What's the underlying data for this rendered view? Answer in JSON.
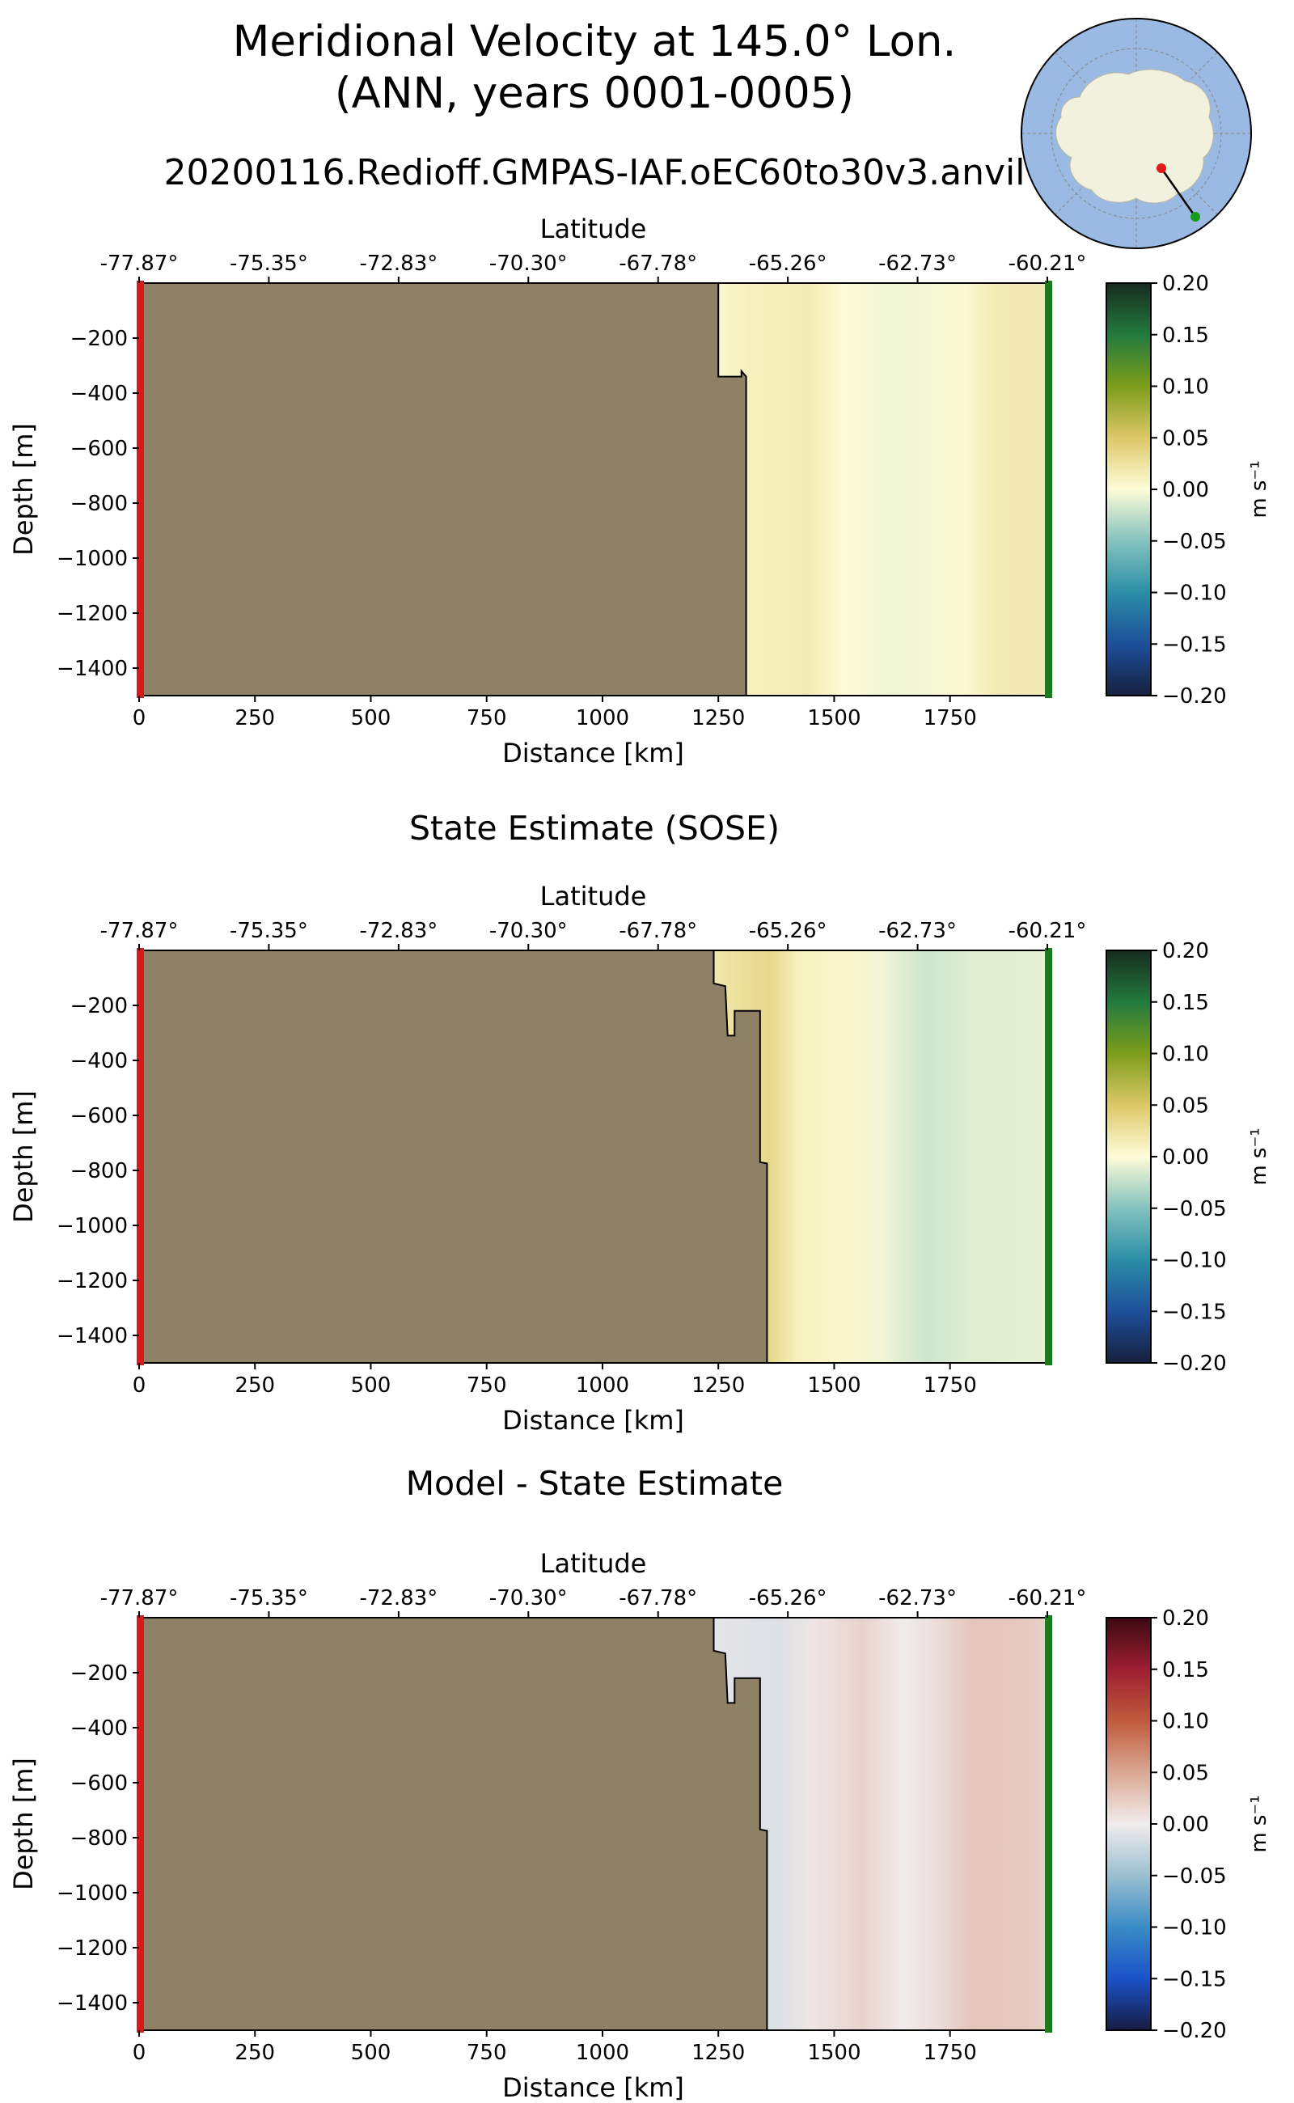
{
  "figure": {
    "title_line1": "Meridional Velocity at 145.0° Lon.",
    "title_line2": "(ANN, years 0001-0005)",
    "run_title": "20200116.Redioff.GMPAS-IAF.oEC60to30v3.anvil"
  },
  "colors": {
    "land": "#8f8165",
    "start_marker": "#d61a1a",
    "end_marker": "#1e7a1e",
    "ocean_map": "#9bbae3",
    "ice_map": "#f2f1dd"
  },
  "chart_data": [
    {
      "type": "heatmap",
      "title": "",
      "xlabel": "Distance [km]",
      "ylabel": "Depth [m]",
      "top_axis_label": "Latitude",
      "xlim": [
        0,
        1960
      ],
      "ylim": [
        -1500,
        0
      ],
      "xticks": [
        0,
        250,
        500,
        750,
        1000,
        1250,
        1500,
        1750
      ],
      "yticks": [
        -200,
        -400,
        -600,
        -800,
        -1000,
        -1200,
        -1400
      ],
      "top_ticks": [
        "-77.87°",
        "-75.35°",
        "-72.83°",
        "-70.30°",
        "-67.78°",
        "-65.26°",
        "-62.73°",
        "-60.21°"
      ],
      "colorbar": {
        "label": "m s⁻¹",
        "ticks": [
          "0.20",
          "0.15",
          "0.10",
          "0.05",
          "0.00",
          "−0.05",
          "−0.10",
          "−0.15",
          "−0.20"
        ],
        "range": [
          -0.2,
          0.2
        ],
        "cmap": "delta"
      },
      "land_boundary": [
        [
          1250,
          0
        ],
        [
          1250,
          -340
        ],
        [
          1300,
          -340
        ],
        [
          1300,
          -320
        ],
        [
          1310,
          -340
        ],
        [
          1310,
          -1500
        ]
      ],
      "field": [
        {
          "x": 1250,
          "v": 0.005
        },
        {
          "x": 1320,
          "v": 0.012
        },
        {
          "x": 1450,
          "v": 0.015
        },
        {
          "x": 1520,
          "v": 0.0
        },
        {
          "x": 1620,
          "v": -0.006
        },
        {
          "x": 1700,
          "v": -0.004
        },
        {
          "x": 1780,
          "v": 0.003
        },
        {
          "x": 1850,
          "v": 0.016
        },
        {
          "x": 1960,
          "v": 0.017
        }
      ]
    },
    {
      "type": "heatmap",
      "title": "State Estimate (SOSE)",
      "xlabel": "Distance [km]",
      "ylabel": "Depth [m]",
      "top_axis_label": "Latitude",
      "xlim": [
        0,
        1960
      ],
      "ylim": [
        -1500,
        0
      ],
      "xticks": [
        0,
        250,
        500,
        750,
        1000,
        1250,
        1500,
        1750
      ],
      "yticks": [
        -200,
        -400,
        -600,
        -800,
        -1000,
        -1200,
        -1400
      ],
      "top_ticks": [
        "-77.87°",
        "-75.35°",
        "-72.83°",
        "-70.30°",
        "-67.78°",
        "-65.26°",
        "-62.73°",
        "-60.21°"
      ],
      "colorbar": {
        "label": "m s⁻¹",
        "ticks": [
          "0.20",
          "0.15",
          "0.10",
          "0.05",
          "0.00",
          "−0.05",
          "−0.10",
          "−0.15",
          "−0.20"
        ],
        "range": [
          -0.2,
          0.2
        ],
        "cmap": "delta"
      },
      "land_boundary": [
        [
          1240,
          0
        ],
        [
          1240,
          -120
        ],
        [
          1265,
          -130
        ],
        [
          1270,
          -310
        ],
        [
          1285,
          -310
        ],
        [
          1285,
          -220
        ],
        [
          1340,
          -220
        ],
        [
          1340,
          -770
        ],
        [
          1355,
          -775
        ],
        [
          1355,
          -1500
        ]
      ],
      "field": [
        {
          "x": 1240,
          "v": 0.02
        },
        {
          "x": 1320,
          "v": 0.03
        },
        {
          "x": 1360,
          "v": 0.035
        },
        {
          "x": 1420,
          "v": 0.012
        },
        {
          "x": 1500,
          "v": 0.006
        },
        {
          "x": 1600,
          "v": -0.005
        },
        {
          "x": 1700,
          "v": -0.02
        },
        {
          "x": 1800,
          "v": -0.012
        },
        {
          "x": 1960,
          "v": -0.01
        }
      ]
    },
    {
      "type": "heatmap",
      "title": "Model - State Estimate",
      "xlabel": "Distance [km]",
      "ylabel": "Depth [m]",
      "top_axis_label": "Latitude",
      "xlim": [
        0,
        1960
      ],
      "ylim": [
        -1500,
        0
      ],
      "xticks": [
        0,
        250,
        500,
        750,
        1000,
        1250,
        1500,
        1750
      ],
      "yticks": [
        -200,
        -400,
        -600,
        -800,
        -1000,
        -1200,
        -1400
      ],
      "top_ticks": [
        "-77.87°",
        "-75.35°",
        "-72.83°",
        "-70.30°",
        "-67.78°",
        "-65.26°",
        "-62.73°",
        "-60.21°"
      ],
      "colorbar": {
        "label": "m s⁻¹",
        "ticks": [
          "0.20",
          "0.15",
          "0.10",
          "0.05",
          "0.00",
          "−0.05",
          "−0.10",
          "−0.15",
          "−0.20"
        ],
        "range": [
          -0.2,
          0.2
        ],
        "cmap": "balance"
      },
      "land_boundary": [
        [
          1240,
          0
        ],
        [
          1240,
          -120
        ],
        [
          1265,
          -130
        ],
        [
          1270,
          -310
        ],
        [
          1285,
          -310
        ],
        [
          1285,
          -220
        ],
        [
          1340,
          -220
        ],
        [
          1340,
          -770
        ],
        [
          1355,
          -775
        ],
        [
          1355,
          -1500
        ]
      ],
      "field": [
        {
          "x": 1240,
          "v": -0.008
        },
        {
          "x": 1380,
          "v": -0.012
        },
        {
          "x": 1450,
          "v": 0.004
        },
        {
          "x": 1560,
          "v": 0.018
        },
        {
          "x": 1650,
          "v": 0.0
        },
        {
          "x": 1730,
          "v": 0.012
        },
        {
          "x": 1800,
          "v": 0.028
        },
        {
          "x": 1900,
          "v": 0.026
        },
        {
          "x": 1960,
          "v": 0.02
        }
      ]
    }
  ]
}
